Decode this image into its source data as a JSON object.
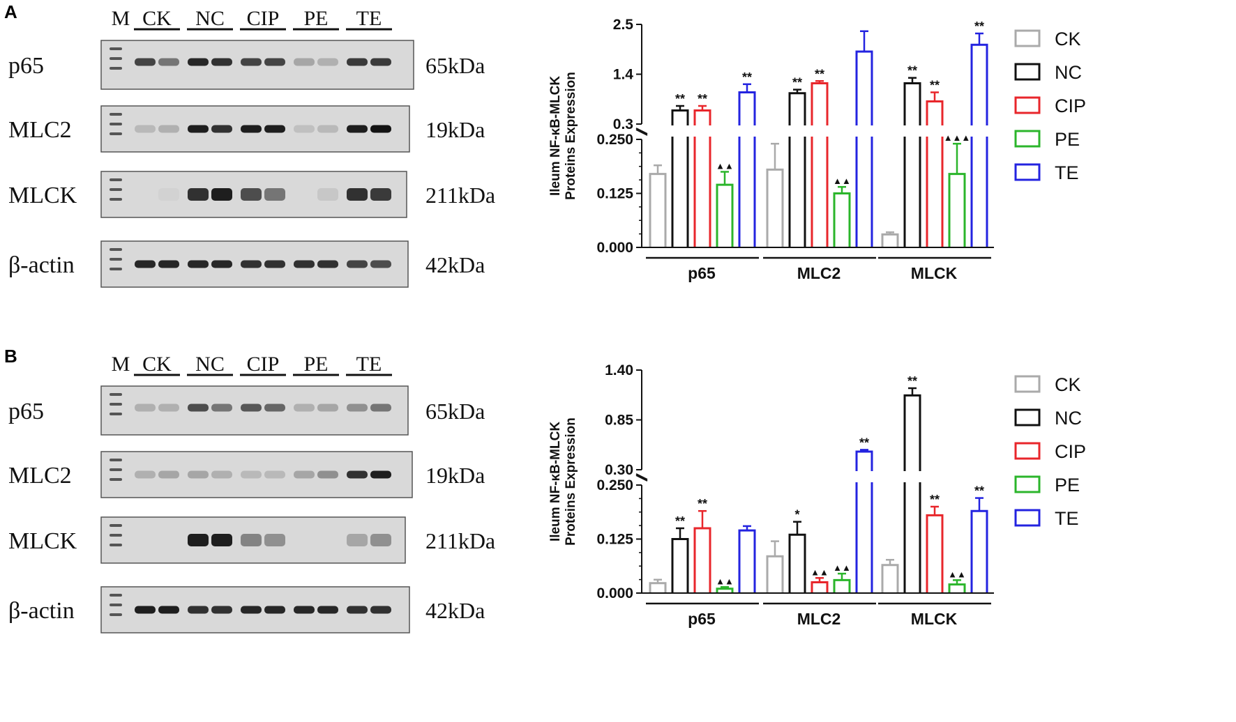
{
  "panels": [
    {
      "label": "A",
      "blot": {
        "marker": "M",
        "lanes": [
          "CK",
          "NC",
          "CIP",
          "PE",
          "TE"
        ],
        "rows": [
          {
            "protein": "p65",
            "size": "65kDa",
            "bands": [
              0.75,
              0.55,
              0.9,
              0.85,
              0.75,
              0.75,
              0.35,
              0.3,
              0.8,
              0.8
            ]
          },
          {
            "protein": "MLC2",
            "size": "19kDa",
            "bands": [
              0.25,
              0.3,
              0.95,
              0.85,
              0.95,
              0.95,
              0.2,
              0.25,
              0.95,
              1.0
            ]
          },
          {
            "protein": "MLCK",
            "size": "211kDa",
            "bands": [
              0.0,
              0.05,
              0.85,
              0.95,
              0.7,
              0.55,
              0.0,
              0.15,
              0.85,
              0.8
            ]
          },
          {
            "protein": "β-actin",
            "size": "42kDa",
            "bands": [
              0.9,
              0.9,
              0.9,
              0.9,
              0.85,
              0.85,
              0.85,
              0.85,
              0.75,
              0.7
            ]
          }
        ]
      }
    },
    {
      "label": "B",
      "blot": {
        "marker": "M",
        "lanes": [
          "CK",
          "NC",
          "CIP",
          "PE",
          "TE"
        ],
        "rows": [
          {
            "protein": "p65",
            "size": "65kDa",
            "bands": [
              0.3,
              0.3,
              0.7,
              0.55,
              0.65,
              0.6,
              0.3,
              0.35,
              0.45,
              0.55
            ]
          },
          {
            "protein": "MLC2",
            "size": "19kDa",
            "bands": [
              0.3,
              0.35,
              0.35,
              0.3,
              0.25,
              0.25,
              0.35,
              0.45,
              0.85,
              0.95
            ]
          },
          {
            "protein": "MLCK",
            "size": "211kDa",
            "bands": [
              0.0,
              0.0,
              0.95,
              0.95,
              0.5,
              0.45,
              0.0,
              0.0,
              0.35,
              0.45
            ]
          },
          {
            "protein": "β-actin",
            "size": "42kDa",
            "bands": [
              0.95,
              0.95,
              0.85,
              0.85,
              0.9,
              0.9,
              0.9,
              0.9,
              0.85,
              0.85
            ]
          }
        ]
      }
    }
  ],
  "legend_colors": {
    "CK": "#aaaaaa",
    "NC": "#111111",
    "CIP": "#e8262b",
    "PE": "#2bb52b",
    "TE": "#2323e0"
  },
  "chart_data": [
    {
      "type": "bar",
      "panel": "A",
      "ylabel": "Ileum NF-κB-MLCK\nProteins Expression",
      "categories": [
        "p65",
        "MLC2",
        "MLCK"
      ],
      "broken_axis": true,
      "lower_ticks": [
        "0.000",
        "0.125",
        "0.250"
      ],
      "upper_ticks": [
        "0.3",
        "1.4",
        "2.5"
      ],
      "ylim_lower": [
        0,
        0.25
      ],
      "ylim_upper": [
        0.3,
        2.5
      ],
      "series": [
        {
          "name": "CK",
          "values": [
            0.17,
            0.18,
            0.03
          ],
          "errors": [
            0.02,
            0.06,
            0.005
          ],
          "marks": [
            "",
            "",
            ""
          ]
        },
        {
          "name": "NC",
          "values": [
            0.6,
            0.98,
            1.2
          ],
          "errors": [
            0.1,
            0.08,
            0.12
          ],
          "marks": [
            "**",
            "**",
            "**"
          ]
        },
        {
          "name": "CIP",
          "values": [
            0.6,
            1.2,
            0.8
          ],
          "errors": [
            0.1,
            0.05,
            0.2
          ],
          "marks": [
            "**",
            "**",
            "**"
          ]
        },
        {
          "name": "PE",
          "values": [
            0.145,
            0.125,
            0.17
          ],
          "errors": [
            0.03,
            0.015,
            0.07
          ],
          "marks": [
            "▲▲",
            "▲▲",
            "▲▲▲"
          ]
        },
        {
          "name": "TE",
          "values": [
            1.0,
            1.9,
            2.05
          ],
          "errors": [
            0.18,
            0.45,
            0.25
          ],
          "marks": [
            "**",
            "",
            "**"
          ]
        }
      ]
    },
    {
      "type": "bar",
      "panel": "B",
      "ylabel": "Ileum NF-κB-MLCK\nProteins Expression",
      "categories": [
        "p65",
        "MLC2",
        "MLCK"
      ],
      "broken_axis": true,
      "lower_ticks": [
        "0.000",
        "0.125",
        "0.250"
      ],
      "upper_ticks": [
        "0.30",
        "0.85",
        "1.40"
      ],
      "ylim_lower": [
        0,
        0.25
      ],
      "ylim_upper": [
        0.3,
        1.4
      ],
      "series": [
        {
          "name": "CK",
          "values": [
            0.023,
            0.085,
            0.065
          ],
          "errors": [
            0.008,
            0.035,
            0.012
          ],
          "marks": [
            "",
            "",
            ""
          ]
        },
        {
          "name": "NC",
          "values": [
            0.125,
            0.135,
            1.12
          ],
          "errors": [
            0.025,
            0.03,
            0.08
          ],
          "marks": [
            "**",
            "*",
            "**"
          ]
        },
        {
          "name": "CIP",
          "values": [
            0.15,
            0.025,
            0.18
          ],
          "errors": [
            0.04,
            0.01,
            0.02
          ],
          "marks": [
            "**",
            "▲▲",
            "**"
          ]
        },
        {
          "name": "PE",
          "values": [
            0.01,
            0.03,
            0.02
          ],
          "errors": [
            0.004,
            0.015,
            0.01
          ],
          "marks": [
            "▲▲",
            "▲▲",
            "▲▲"
          ]
        },
        {
          "name": "TE",
          "values": [
            0.145,
            0.5,
            0.19
          ],
          "errors": [
            0.01,
            0.02,
            0.03
          ],
          "marks": [
            "",
            "**",
            "**"
          ]
        }
      ]
    }
  ]
}
